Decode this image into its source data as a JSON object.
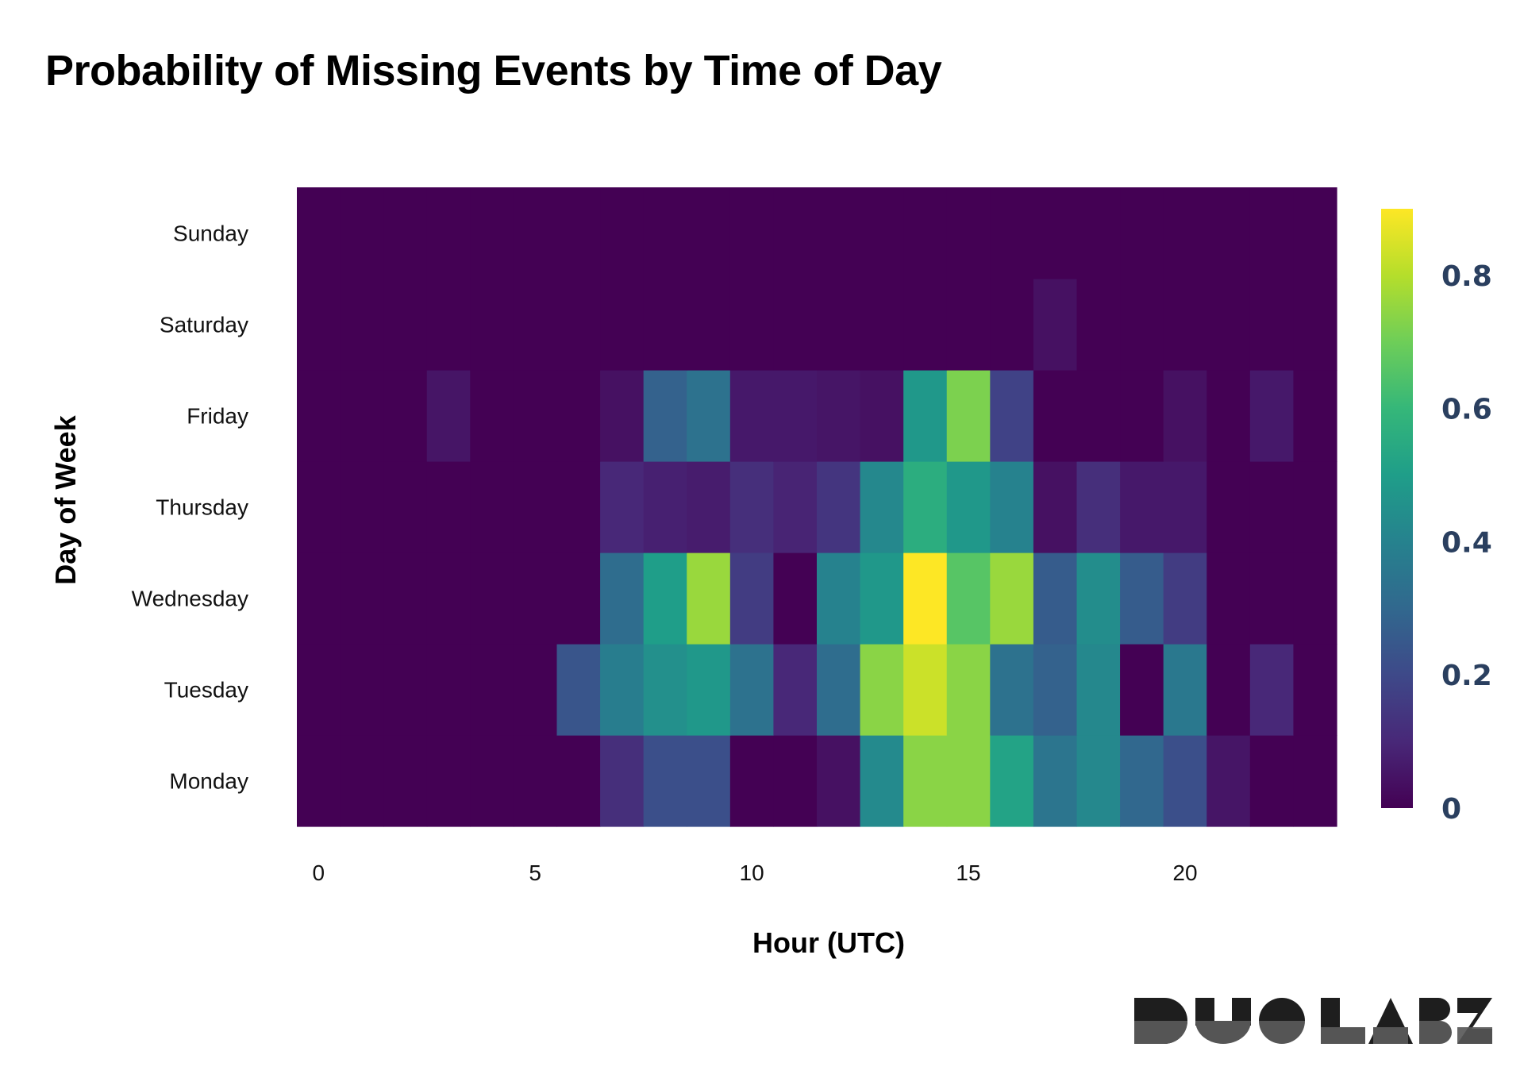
{
  "chart_data": {
    "type": "heatmap",
    "title": "Probability of Missing Events by Time of Day",
    "xlabel": "Hour (UTC)",
    "ylabel": "Day of Week",
    "x": [
      0,
      1,
      2,
      3,
      4,
      5,
      6,
      7,
      8,
      9,
      10,
      11,
      12,
      13,
      14,
      15,
      16,
      17,
      18,
      19,
      20,
      21,
      22,
      23
    ],
    "x_ticks": [
      "0",
      "5",
      "10",
      "15",
      "20"
    ],
    "y": [
      "Monday",
      "Tuesday",
      "Wednesday",
      "Thursday",
      "Friday",
      "Saturday",
      "Sunday"
    ],
    "z": [
      [
        0,
        0,
        0,
        0,
        0,
        0,
        0,
        0.12,
        0.22,
        0.22,
        0,
        0,
        0.04,
        0.43,
        0.74,
        0.74,
        0.52,
        0.35,
        0.42,
        0.3,
        0.22,
        0.05,
        0,
        0
      ],
      [
        0,
        0,
        0,
        0,
        0,
        0,
        0.24,
        0.38,
        0.45,
        0.48,
        0.34,
        0.1,
        0.32,
        0.74,
        0.83,
        0.74,
        0.34,
        0.28,
        0.42,
        0,
        0.36,
        0,
        0.1,
        0
      ],
      [
        0,
        0,
        0,
        0,
        0,
        0,
        0,
        0.32,
        0.5,
        0.76,
        0.16,
        0,
        0.4,
        0.48,
        0.9,
        0.66,
        0.76,
        0.26,
        0.44,
        0.26,
        0.16,
        0,
        0,
        0
      ],
      [
        0,
        0,
        0,
        0,
        0,
        0,
        0,
        0.1,
        0.08,
        0.07,
        0.12,
        0.09,
        0.14,
        0.42,
        0.56,
        0.48,
        0.4,
        0.04,
        0.12,
        0.06,
        0.06,
        0,
        0,
        0
      ],
      [
        0,
        0,
        0,
        0.05,
        0,
        0,
        0,
        0.04,
        0.28,
        0.34,
        0.06,
        0.06,
        0.05,
        0.04,
        0.48,
        0.72,
        0.18,
        0,
        0,
        0,
        0.04,
        0,
        0.06,
        0
      ],
      [
        0,
        0,
        0,
        0,
        0,
        0,
        0,
        0,
        0,
        0,
        0,
        0,
        0,
        0,
        0,
        0,
        0,
        0.04,
        0,
        0,
        0,
        0,
        0,
        0
      ],
      [
        0,
        0,
        0,
        0,
        0,
        0,
        0,
        0,
        0,
        0,
        0,
        0,
        0,
        0,
        0,
        0,
        0,
        0,
        0,
        0,
        0,
        0,
        0,
        0
      ]
    ],
    "colorscale": "viridis",
    "zmin": 0,
    "zmax": 0.9,
    "colorbar_ticks": [
      "0",
      "0.2",
      "0.4",
      "0.6",
      "0.8"
    ],
    "grid": false,
    "colorbar_position": "right"
  },
  "logo": {
    "text": "DUO LABS"
  }
}
